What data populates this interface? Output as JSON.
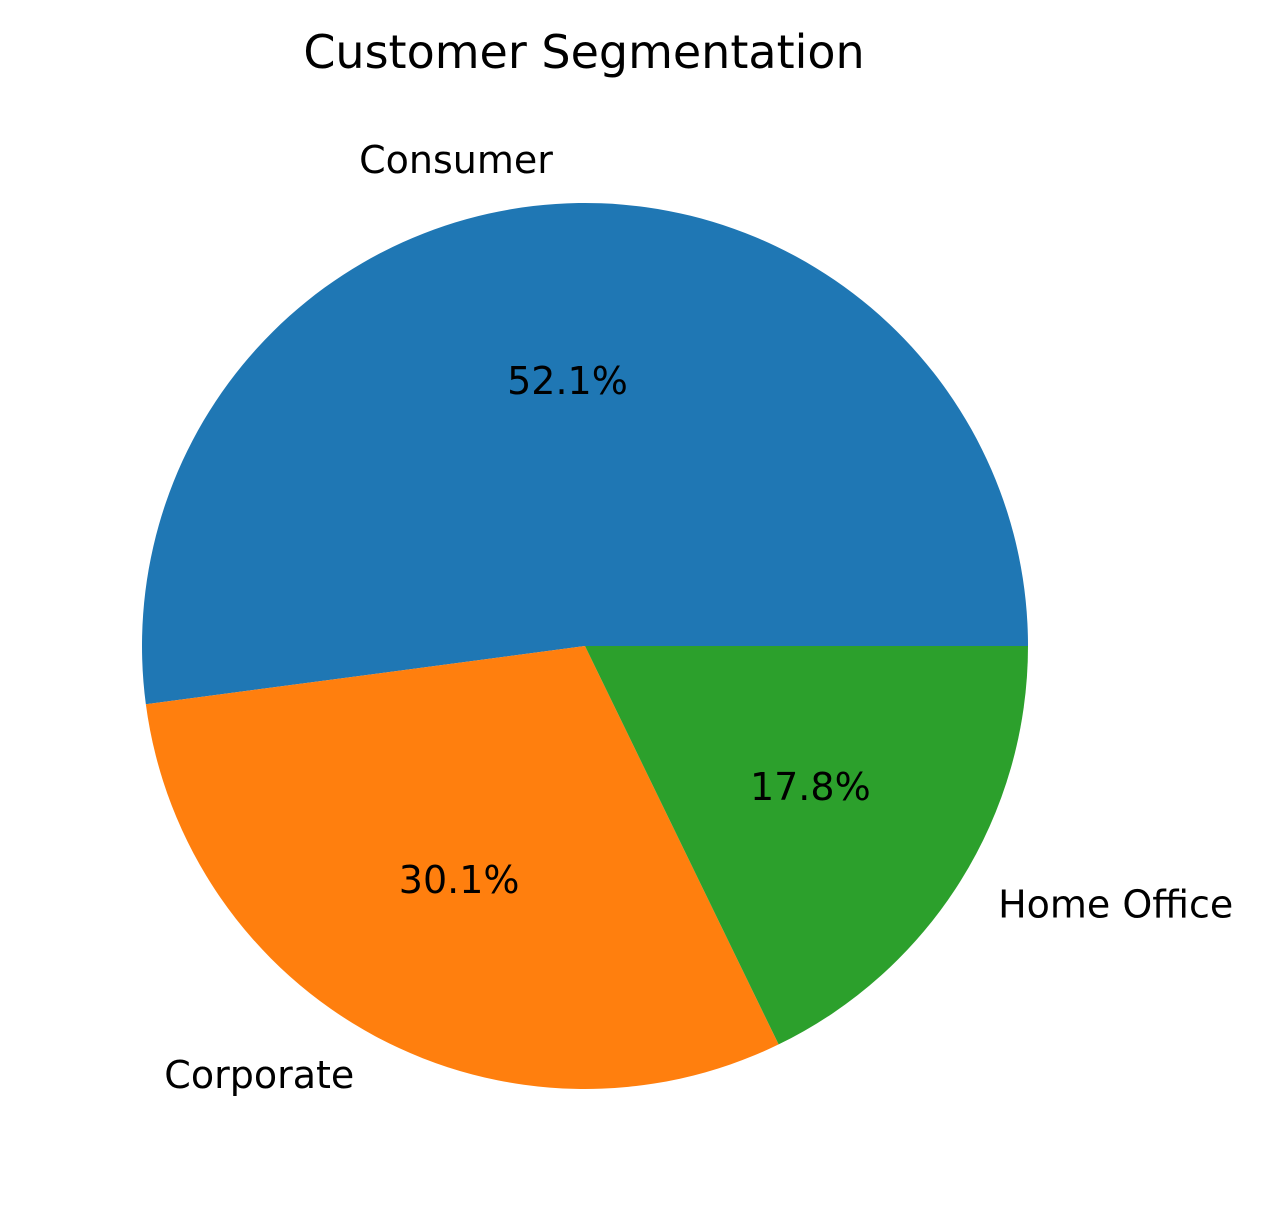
{
  "chart_data": {
    "type": "pie",
    "title": "Customer Segmentation",
    "categories": [
      "Consumer",
      "Corporate",
      "Home Office"
    ],
    "values": [
      52.1,
      30.1,
      17.8
    ],
    "value_labels": [
      "52.1%",
      "30.1%",
      "17.8%"
    ],
    "colors": [
      "#1f77b4",
      "#ff7f0e",
      "#2ca02c"
    ],
    "start_angle_deg": 0,
    "direction": "counterclockwise"
  }
}
